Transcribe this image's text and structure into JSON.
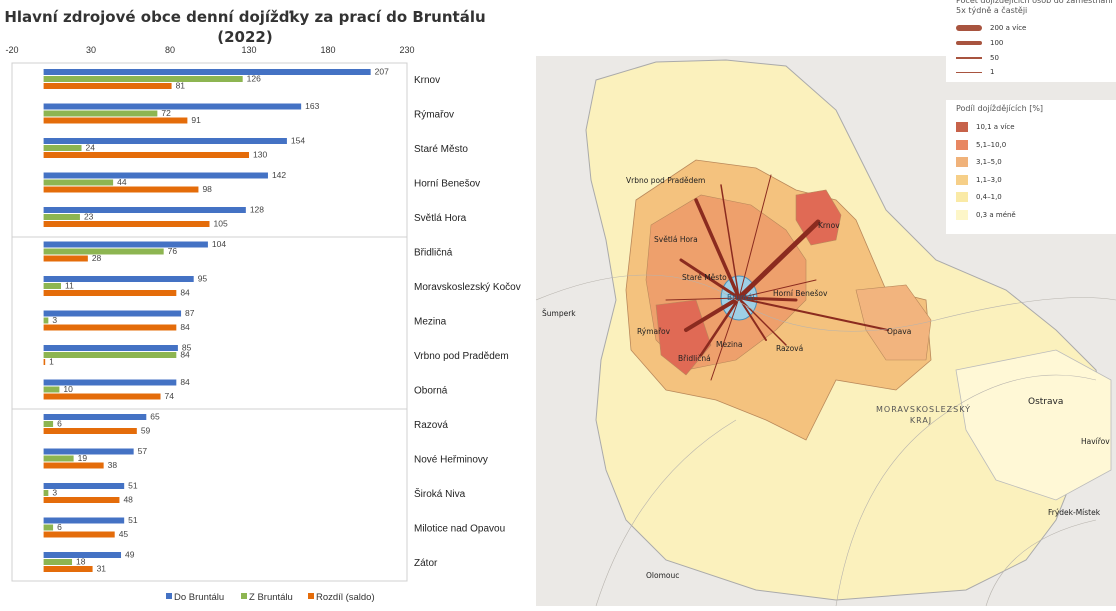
{
  "chart_data": {
    "type": "bar",
    "title_line1": "Hlavní zdrojové obce denní dojížďky za prací do Bruntálu",
    "title_line2": "(2022)",
    "xticks": [
      "-20",
      "30",
      "80",
      "130",
      "180",
      "230"
    ],
    "xlim": [
      -20,
      230
    ],
    "categories": [
      "Krnov",
      "Rýmařov",
      "Staré Město",
      "Horní Benešov",
      "Světlá Hora",
      "Břidličná",
      "Moravskoslezský Kočov",
      "Mezina",
      "Vrbno pod Pradědem",
      "Oborná",
      "Razová",
      "Nové Heřminovy",
      "Široká Niva",
      "Milotice nad Opavou",
      "Zátor"
    ],
    "series": [
      {
        "name": "Do Bruntálu",
        "color": "#4472C4",
        "values": [
          207,
          163,
          154,
          142,
          128,
          104,
          95,
          87,
          85,
          84,
          65,
          57,
          51,
          51,
          49
        ]
      },
      {
        "name": "Z Bruntálu",
        "color": "#8DB551",
        "values": [
          126,
          72,
          24,
          44,
          23,
          76,
          11,
          3,
          84,
          10,
          6,
          19,
          3,
          6,
          18
        ]
      },
      {
        "name": "Rozdíl (saldo)",
        "color": "#E46C0A",
        "values": [
          81,
          91,
          130,
          98,
          105,
          28,
          84,
          84,
          1,
          74,
          59,
          38,
          48,
          45,
          31
        ]
      }
    ]
  },
  "map": {
    "legend_flow": {
      "title": "Počet dojíždějících osob do zaměstnání 5x týdně a častěji",
      "items": [
        "200 a více",
        "100",
        "50",
        "1"
      ]
    },
    "legend_share": {
      "title": "Podíl dojíždějících [%]",
      "items": [
        {
          "label": "10,1 a více",
          "color": "#c7624a"
        },
        {
          "label": "5,1–10,0",
          "color": "#e88762"
        },
        {
          "label": "3,1–5,0",
          "color": "#f0b27a"
        },
        {
          "label": "1,1–3,0",
          "color": "#f6cf88"
        },
        {
          "label": "0,4–1,0",
          "color": "#faeaa6"
        },
        {
          "label": "0,3 a méně",
          "color": "#fdf6c8"
        }
      ]
    },
    "places": [
      "Vrbno pod Pradědem",
      "Krnov",
      "Světlá Hora",
      "Staré Město",
      "Bruntál",
      "Horní Benešov",
      "Šumperk",
      "Rýmařov",
      "Mezina",
      "Razová",
      "Opava",
      "Břidličná",
      "Ostrava",
      "Havířov",
      "Frýdek-Místek",
      "Olomouc"
    ],
    "region": "MORAVSKOSLEZSKÝ KRAJ"
  }
}
